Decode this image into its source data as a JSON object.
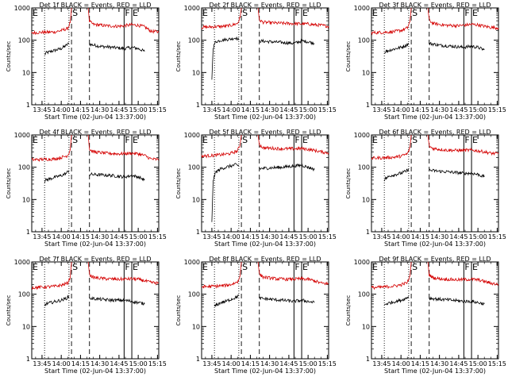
{
  "chart_data": {
    "type": "line",
    "figure_layout": "3x3 grid of panels",
    "yscale": "log",
    "ylim": [
      1,
      1000
    ],
    "ylabel": "Counts/sec",
    "xlabel": "Start Time (02-Jun-04 13:37:00)",
    "x_tick_labels": [
      "13:45",
      "14:00",
      "14:15",
      "14:30",
      "14:45",
      "15:00",
      "15:15"
    ],
    "y_tick_labels": [
      "1",
      "10",
      "100",
      "1000"
    ],
    "x_start": "13:37",
    "x_end": "15:16",
    "colors": {
      "events": "#000000",
      "lld": "#d40000",
      "frame": "#000000"
    },
    "markers": {
      "dotted_lines": [
        "13:47",
        "14:06"
      ],
      "dashed_lines": [
        "14:08",
        "14:22"
      ],
      "solid_lines": [
        "14:49",
        "14:55"
      ],
      "labels": [
        "E",
        "S",
        "F",
        "E"
      ]
    },
    "series_names": [
      "Events",
      "LLD"
    ],
    "panels": [
      {
        "title": "Det 1f BLACK = Events, RED = LLD",
        "series": [
          {
            "name": "Events",
            "x": [
              "13:47",
              "13:48",
              "13:52",
              "13:56",
              "14:00",
              "14:04",
              "14:06"
            ],
            "y": [
              35,
              40,
              45,
              50,
              55,
              70,
              80
            ],
            "x2": [
              "14:22",
              "14:30",
              "14:40",
              "14:49",
              "14:55",
              "15:00",
              "15:05"
            ],
            "y2": [
              75,
              65,
              60,
              55,
              60,
              55,
              45
            ]
          },
          {
            "name": "LLD",
            "x": [
              "13:37",
              "13:45",
              "13:55",
              "14:00",
              "14:05",
              "14:07",
              "14:08"
            ],
            "y": [
              170,
              175,
              180,
              200,
              230,
              350,
              1000
            ],
            "x2": [
              "14:21",
              "14:22",
              "14:25",
              "14:35",
              "14:45",
              "14:55",
              "15:00",
              "15:05",
              "15:10",
              "15:16"
            ],
            "y2": [
              1000,
              380,
              310,
              280,
              270,
              300,
              290,
              260,
              190,
              180
            ]
          }
        ]
      },
      {
        "title": "Det 2f BLACK = Events, RED = LLD",
        "series": [
          {
            "name": "Events",
            "x": [
              "13:45",
              "13:46",
              "13:48",
              "13:52",
              "14:00",
              "14:04",
              "14:06"
            ],
            "y": [
              6,
              60,
              90,
              100,
              110,
              120,
              100
            ],
            "x2": [
              "14:22",
              "14:30",
              "14:40",
              "14:49",
              "14:55",
              "15:00",
              "15:05"
            ],
            "y2": [
              95,
              90,
              85,
              80,
              95,
              90,
              80
            ]
          },
          {
            "name": "LLD",
            "x": [
              "13:37",
              "13:45",
              "13:55",
              "14:00",
              "14:05",
              "14:07",
              "14:08"
            ],
            "y": [
              250,
              260,
              270,
              290,
              330,
              500,
              1000
            ],
            "x2": [
              "14:21",
              "14:22",
              "14:25",
              "14:35",
              "14:45",
              "14:55",
              "15:00",
              "15:05",
              "15:10",
              "15:16"
            ],
            "y2": [
              1000,
              420,
              360,
              340,
              330,
              320,
              320,
              300,
              290,
              270
            ]
          }
        ]
      },
      {
        "title": "Det 3f BLACK = Events, RED = LLD",
        "series": [
          {
            "name": "Events",
            "x": [
              "13:47",
              "13:48",
              "13:52",
              "13:56",
              "14:00",
              "14:04",
              "14:06"
            ],
            "y": [
              40,
              45,
              50,
              55,
              60,
              70,
              80
            ],
            "x2": [
              "14:22",
              "14:30",
              "14:40",
              "14:49",
              "14:55",
              "15:00",
              "15:05"
            ],
            "y2": [
              80,
              70,
              65,
              60,
              65,
              60,
              50
            ]
          },
          {
            "name": "LLD",
            "x": [
              "13:37",
              "13:45",
              "13:55",
              "14:00",
              "14:05",
              "14:07",
              "14:08"
            ],
            "y": [
              170,
              175,
              185,
              200,
              240,
              380,
              1000
            ],
            "x2": [
              "14:21",
              "14:22",
              "14:25",
              "14:35",
              "14:45",
              "14:55",
              "15:00",
              "15:05",
              "15:10",
              "15:16"
            ],
            "y2": [
              1000,
              420,
              330,
              290,
              280,
              310,
              300,
              270,
              250,
              240
            ]
          }
        ]
      },
      {
        "title": "Det 4f BLACK = Events, RED = LLD",
        "series": [
          {
            "name": "Events",
            "x": [
              "13:47",
              "13:48",
              "13:52",
              "13:56",
              "14:00",
              "14:04",
              "14:06"
            ],
            "y": [
              35,
              40,
              45,
              50,
              55,
              65,
              80
            ],
            "x2": [
              "14:22",
              "14:30",
              "14:40",
              "14:49",
              "14:55",
              "15:00",
              "15:05"
            ],
            "y2": [
              60,
              58,
              55,
              50,
              55,
              50,
              40
            ]
          },
          {
            "name": "LLD",
            "x": [
              "13:37",
              "13:45",
              "13:55",
              "14:00",
              "14:05",
              "14:07",
              "14:08"
            ],
            "y": [
              170,
              175,
              180,
              200,
              230,
              350,
              1000
            ],
            "x2": [
              "14:21",
              "14:22",
              "14:25",
              "14:35",
              "14:45",
              "14:55",
              "15:00",
              "15:05",
              "15:10",
              "15:16"
            ],
            "y2": [
              1000,
              360,
              300,
              270,
              260,
              270,
              260,
              230,
              180,
              170
            ]
          }
        ]
      },
      {
        "title": "Det 5f BLACK = Events, RED = LLD",
        "series": [
          {
            "name": "Events",
            "x": [
              "13:45",
              "13:46",
              "13:48",
              "13:52",
              "14:00",
              "14:04",
              "14:06"
            ],
            "y": [
              2,
              40,
              70,
              90,
              110,
              120,
              110
            ],
            "x2": [
              "14:22",
              "14:30",
              "14:40",
              "14:49",
              "14:55",
              "15:00",
              "15:05"
            ],
            "y2": [
              90,
              95,
              100,
              110,
              115,
              100,
              85
            ]
          },
          {
            "name": "LLD",
            "x": [
              "13:37",
              "13:45",
              "13:55",
              "14:00",
              "14:05",
              "14:07",
              "14:08"
            ],
            "y": [
              220,
              230,
              250,
              270,
              320,
              500,
              1000
            ],
            "x2": [
              "14:21",
              "14:22",
              "14:25",
              "14:35",
              "14:45",
              "14:55",
              "15:00",
              "15:05",
              "15:10",
              "15:16"
            ],
            "y2": [
              1000,
              500,
              400,
              380,
              370,
              380,
              360,
              330,
              300,
              280
            ]
          }
        ]
      },
      {
        "title": "Det 6f BLACK = Events, RED = LLD",
        "series": [
          {
            "name": "Events",
            "x": [
              "13:47",
              "13:48",
              "13:52",
              "13:56",
              "14:00",
              "14:04",
              "14:06"
            ],
            "y": [
              40,
              45,
              55,
              60,
              65,
              75,
              90
            ],
            "x2": [
              "14:22",
              "14:30",
              "14:40",
              "14:49",
              "14:55",
              "15:00",
              "15:05"
            ],
            "y2": [
              80,
              75,
              70,
              65,
              65,
              60,
              50
            ]
          },
          {
            "name": "LLD",
            "x": [
              "13:37",
              "13:45",
              "13:55",
              "14:00",
              "14:05",
              "14:07",
              "14:08"
            ],
            "y": [
              190,
              195,
              205,
              220,
              260,
              400,
              1000
            ],
            "x2": [
              "14:21",
              "14:22",
              "14:25",
              "14:35",
              "14:45",
              "14:55",
              "15:00",
              "15:05",
              "15:10",
              "15:16"
            ],
            "y2": [
              1000,
              450,
              380,
              340,
              330,
              340,
              320,
              300,
              270,
              260
            ]
          }
        ]
      },
      {
        "title": "Det 7f BLACK = Events, RED = LLD",
        "series": [
          {
            "name": "Events",
            "x": [
              "13:47",
              "13:48",
              "13:52",
              "13:56",
              "14:00",
              "14:04",
              "14:06"
            ],
            "y": [
              45,
              50,
              55,
              60,
              65,
              75,
              85
            ],
            "x2": [
              "14:22",
              "14:30",
              "14:40",
              "14:49",
              "14:55",
              "15:00",
              "15:05"
            ],
            "y2": [
              75,
              70,
              65,
              65,
              60,
              55,
              50
            ]
          },
          {
            "name": "LLD",
            "x": [
              "13:37",
              "13:45",
              "13:55",
              "14:00",
              "14:05",
              "14:07",
              "14:08"
            ],
            "y": [
              160,
              165,
              175,
              190,
              220,
              340,
              1000
            ],
            "x2": [
              "14:21",
              "14:22",
              "14:25",
              "14:35",
              "14:45",
              "14:55",
              "15:00",
              "15:05",
              "15:10",
              "15:16"
            ],
            "y2": [
              1000,
              400,
              330,
              300,
              290,
              300,
              290,
              260,
              230,
              220
            ]
          }
        ]
      },
      {
        "title": "Det 8f BLACK = Events, RED = LLD",
        "series": [
          {
            "name": "Events",
            "x": [
              "13:47",
              "13:48",
              "13:52",
              "13:56",
              "14:00",
              "14:04",
              "14:06"
            ],
            "y": [
              40,
              45,
              55,
              60,
              70,
              80,
              95
            ],
            "x2": [
              "14:22",
              "14:30",
              "14:40",
              "14:49",
              "14:55",
              "15:00",
              "15:05"
            ],
            "y2": [
              75,
              70,
              65,
              60,
              65,
              60,
              55
            ]
          },
          {
            "name": "LLD",
            "x": [
              "13:37",
              "13:45",
              "13:55",
              "14:00",
              "14:05",
              "14:07",
              "14:08"
            ],
            "y": [
              170,
              175,
              185,
              200,
              240,
              380,
              1000
            ],
            "x2": [
              "14:21",
              "14:22",
              "14:25",
              "14:35",
              "14:45",
              "14:55",
              "15:00",
              "15:05",
              "15:10",
              "15:16"
            ],
            "y2": [
              1000,
              420,
              340,
              300,
              290,
              300,
              290,
              260,
              220,
              210
            ]
          }
        ]
      },
      {
        "title": "Det 9f BLACK = Events, RED = LLD",
        "series": [
          {
            "name": "Events",
            "x": [
              "13:47",
              "13:48",
              "13:52",
              "13:56",
              "14:00",
              "14:04",
              "14:06"
            ],
            "y": [
              45,
              50,
              55,
              60,
              65,
              75,
              85
            ],
            "x2": [
              "14:22",
              "14:30",
              "14:40",
              "14:49",
              "14:55",
              "15:00",
              "15:05"
            ],
            "y2": [
              75,
              70,
              65,
              60,
              60,
              55,
              50
            ]
          },
          {
            "name": "LLD",
            "x": [
              "13:37",
              "13:45",
              "13:55",
              "14:00",
              "14:05",
              "14:07",
              "14:08"
            ],
            "y": [
              160,
              165,
              180,
              195,
              230,
              360,
              1000
            ],
            "x2": [
              "14:21",
              "14:22",
              "14:25",
              "14:35",
              "14:45",
              "14:55",
              "15:00",
              "15:05",
              "15:10",
              "15:16"
            ],
            "y2": [
              1000,
              400,
              320,
              290,
              280,
              290,
              280,
              250,
              220,
              200
            ]
          }
        ]
      }
    ]
  }
}
